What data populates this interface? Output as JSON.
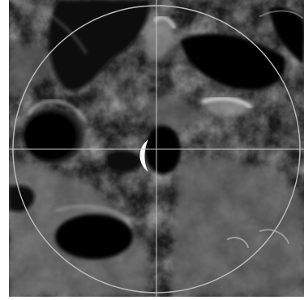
{
  "image": {
    "subject": "lunar-south-pole-terrain",
    "overlay_colors": {
      "reticle": "#bdbdbd",
      "crosshair": "#c8c8c8"
    },
    "palette": {
      "shadow": "#050505",
      "regolith_dark": "#2a2a2a",
      "regolith_mid": "#6a6a6a",
      "regolith_light": "#b9b9b9",
      "sunlit_rim": "#f2f2f2"
    }
  }
}
